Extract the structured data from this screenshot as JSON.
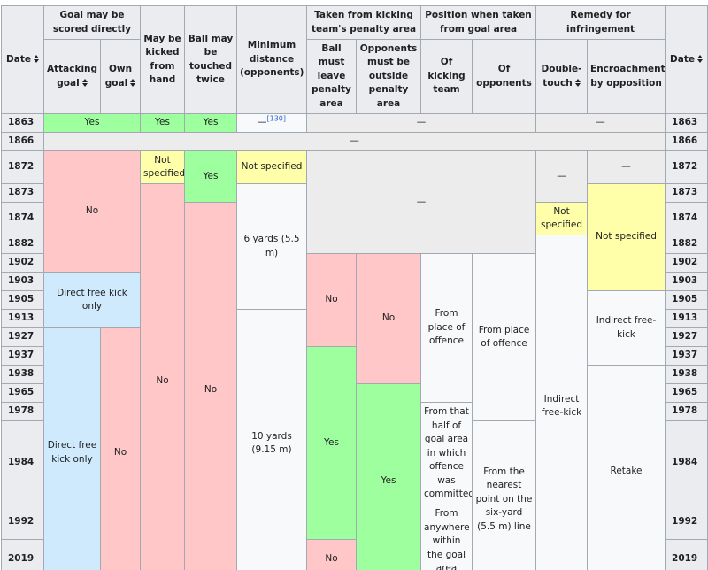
{
  "header": {
    "groups": [
      {
        "text": "Date",
        "rowspan": 2,
        "sort": true
      },
      {
        "text": "Goal may be scored directly",
        "colspan": 2
      },
      {
        "text": "May be kicked from hand",
        "rowspan": 2
      },
      {
        "text": "Ball may be touched twice",
        "rowspan": 2
      },
      {
        "text": "Minimum distance (opponents)",
        "rowspan": 2
      },
      {
        "text": "Taken from kicking team's penalty area",
        "colspan": 2
      },
      {
        "text": "Position when taken from goal area",
        "colspan": 2
      },
      {
        "text": "Remedy for infringement",
        "colspan": 2
      },
      {
        "text": "Date",
        "rowspan": 2,
        "sort": true
      }
    ],
    "sub": [
      {
        "text": "Attacking goal",
        "sort": true
      },
      {
        "text": "Own goal",
        "sort": true
      },
      {
        "text": "Ball must leave penalty area"
      },
      {
        "text": "Opponents must be outside penalty area"
      },
      {
        "text": "Of kicking team"
      },
      {
        "text": "Of opponents"
      },
      {
        "text": "Double-touch",
        "sort": true
      },
      {
        "text": "Encroachment by opposition"
      }
    ]
  },
  "rows": [
    {
      "date": "1863",
      "cells": [
        {
          "text": "Yes",
          "colspan": 2,
          "bg": "#9eff9e"
        },
        {
          "text": "Yes",
          "bg": "#9eff9e"
        },
        {
          "text": "Yes",
          "bg": "#9eff9e"
        },
        {
          "text": "—",
          "note": "[130]",
          "bg": "#f8f9fa"
        },
        {
          "text": "—",
          "colspan": 4,
          "bg": "#ececec"
        },
        {
          "text": "—",
          "colspan": 2,
          "bg": "#ececec"
        }
      ]
    },
    {
      "date": "1866",
      "cells": [
        {
          "text": "—",
          "colspan": 11,
          "bg": "#ececec"
        }
      ]
    },
    {
      "date": "1872",
      "cells": [
        {
          "text": "No",
          "colspan": 2,
          "rowspan": 5,
          "bg": "#ffc7c7"
        },
        {
          "text": "Not specified",
          "bg": "#ffffaa"
        },
        {
          "text": "Yes",
          "rowspan": 2,
          "bg": "#9eff9e"
        },
        {
          "text": "Not specified",
          "bg": "#ffffaa"
        },
        {
          "text": "—",
          "colspan": 4,
          "rowspan": 4,
          "bg": "#ececec"
        },
        {
          "text": "—",
          "rowspan": 2,
          "bg": "#ececec"
        },
        {
          "text": "—",
          "bg": "#ececec"
        }
      ]
    },
    {
      "date": "1873",
      "cells": [
        {
          "text": "No",
          "rowspan": 16,
          "bg": "#ffc7c7"
        },
        {
          "text": "6 yards (5.5 m)",
          "rowspan": 6,
          "bg": "#f8f9fa"
        },
        {
          "text": "Not specified",
          "rowspan": 5,
          "bg": "#ffffaa"
        }
      ]
    },
    {
      "date": "1874",
      "cells": [
        {
          "text": "No",
          "rowspan": 15,
          "bg": "#ffc7c7"
        },
        {
          "text": "Not specified",
          "bg": "#ffffaa"
        }
      ]
    },
    {
      "date": "1882",
      "cells": [
        {
          "text": "Indirect free-kick",
          "rowspan": 13,
          "bg": "#f8f9fa"
        }
      ]
    },
    {
      "date": "1902",
      "cells": [
        {
          "text": "No",
          "rowspan": 5,
          "bg": "#ffc7c7"
        },
        {
          "text": "No",
          "rowspan": 7,
          "bg": "#ffc7c7"
        },
        {
          "text": "From place of offence",
          "rowspan": 8,
          "bg": "#f8f9fa"
        },
        {
          "text": "From place of offence",
          "rowspan": 9,
          "bg": "#f8f9fa"
        }
      ]
    },
    {
      "date": "1903",
      "cells": [
        {
          "text": "Direct free kick only",
          "colspan": 2,
          "rowspan": 3,
          "bg": "#cfeafc"
        }
      ]
    },
    {
      "date": "1905",
      "cells": [
        {
          "text": "Indirect free-kick",
          "rowspan": 4,
          "bg": "#f8f9fa"
        }
      ]
    },
    {
      "date": "1913",
      "cells": [
        {
          "text": "10 yards (9.15 m)",
          "rowspan": 10,
          "bg": "#f8f9fa"
        }
      ]
    },
    {
      "date": "1927",
      "cells": [
        {
          "text": "Direct free kick only",
          "rowspan": 8,
          "bg": "#cfeafc"
        },
        {
          "text": "No",
          "rowspan": 8,
          "bg": "#ffc7c7"
        }
      ]
    },
    {
      "date": "1937",
      "cells": [
        {
          "text": "Yes",
          "rowspan": 6,
          "bg": "#9eff9e"
        }
      ]
    },
    {
      "date": "1938",
      "cells": [
        {
          "text": "Retake",
          "rowspan": 6,
          "bg": "#f8f9fa"
        }
      ]
    },
    {
      "date": "1965",
      "cells": [
        {
          "text": "Yes",
          "rowspan": 5,
          "bg": "#9eff9e"
        }
      ]
    },
    {
      "date": "1978",
      "cells": [
        {
          "text": "From that half of goal area in which offence was committed",
          "rowspan": 2,
          "bg": "#f8f9fa"
        }
      ]
    },
    {
      "date": "1984",
      "cells": [
        {
          "text": "From the nearest point on the six-yard (5.5 m) line",
          "rowspan": 3,
          "bg": "#f8f9fa"
        }
      ]
    },
    {
      "date": "1992",
      "cells": [
        {
          "text": "From anywhere within the goal area",
          "rowspan": 2,
          "bg": "#f8f9fa"
        }
      ]
    },
    {
      "date": "2019",
      "cells": [
        {
          "text": "No",
          "bg": "#ffc7c7"
        }
      ]
    }
  ]
}
